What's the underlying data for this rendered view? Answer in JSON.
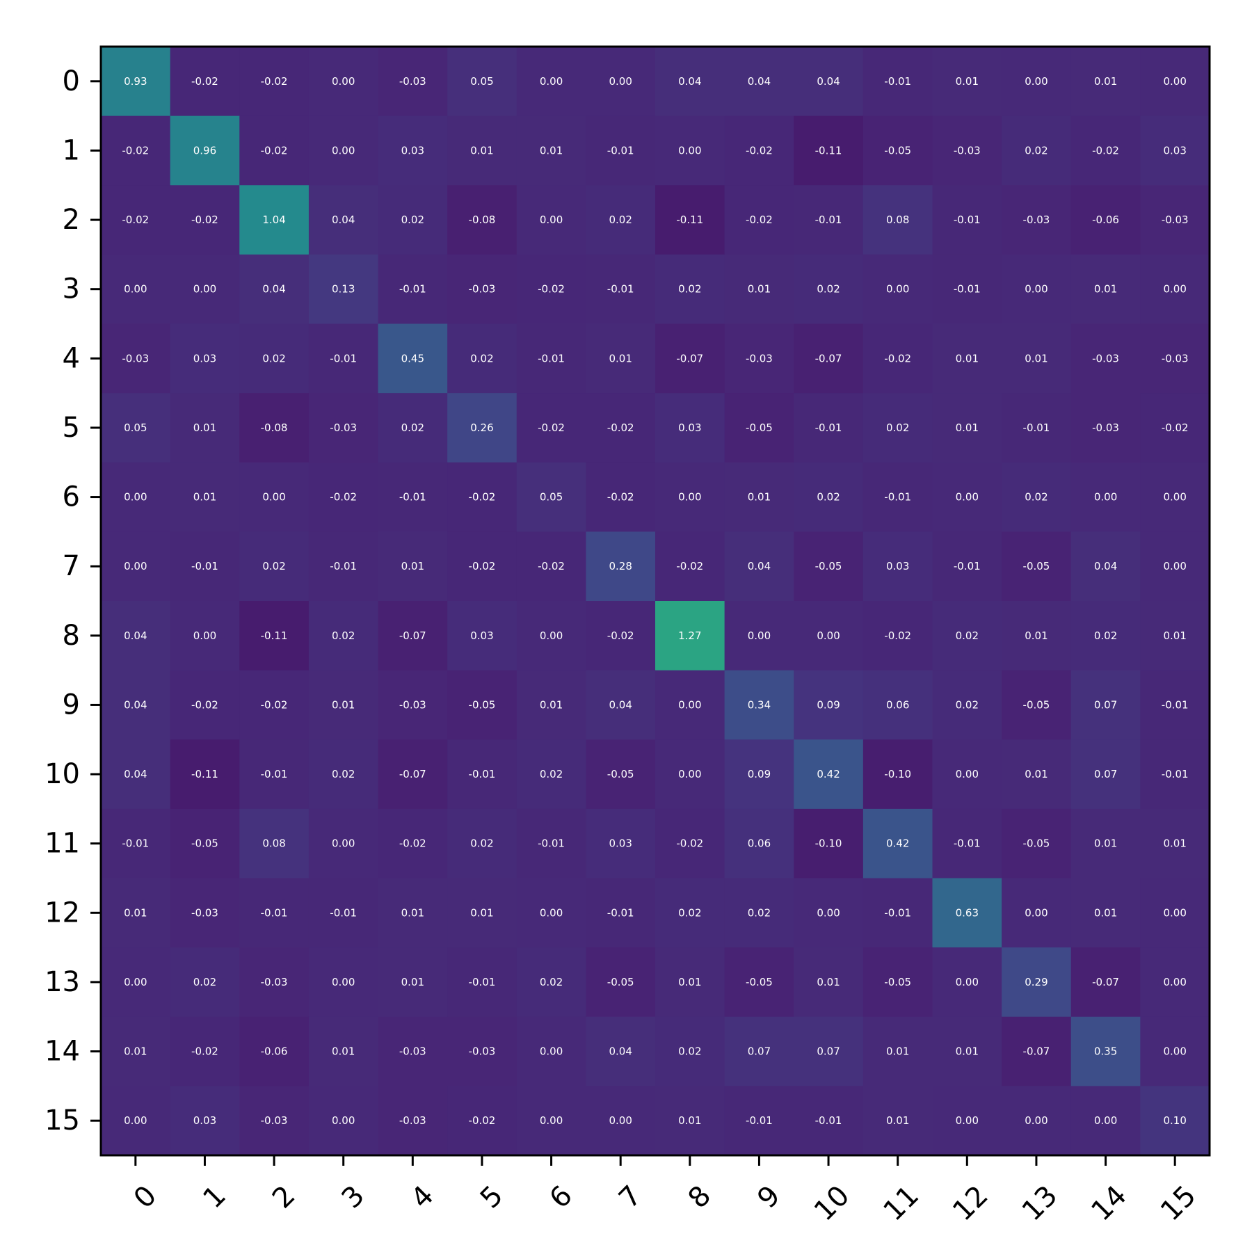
{
  "chart_data": {
    "type": "heatmap",
    "title": "",
    "xlabel": "",
    "ylabel": "",
    "x_categories": [
      "0",
      "1",
      "2",
      "3",
      "4",
      "5",
      "6",
      "7",
      "8",
      "9",
      "10",
      "11",
      "12",
      "13",
      "14",
      "15"
    ],
    "y_categories": [
      "0",
      "1",
      "2",
      "3",
      "4",
      "5",
      "6",
      "7",
      "8",
      "9",
      "10",
      "11",
      "12",
      "13",
      "14",
      "15"
    ],
    "colormap": "viridis",
    "color_range": [
      -0.35,
      2.0
    ],
    "values": [
      [
        0.93,
        -0.02,
        -0.02,
        -0.0,
        -0.03,
        0.05,
        -0.0,
        0.0,
        0.04,
        0.04,
        0.04,
        -0.01,
        0.01,
        0.0,
        0.01,
        0.0
      ],
      [
        -0.02,
        0.96,
        -0.02,
        0.0,
        0.03,
        0.01,
        0.01,
        -0.01,
        -0.0,
        -0.02,
        -0.11,
        -0.05,
        -0.03,
        0.02,
        -0.02,
        0.03
      ],
      [
        -0.02,
        -0.02,
        1.04,
        0.04,
        0.02,
        -0.08,
        0.0,
        0.02,
        -0.11,
        -0.02,
        -0.01,
        0.08,
        -0.01,
        -0.03,
        -0.06,
        -0.03
      ],
      [
        -0.0,
        0.0,
        0.04,
        0.13,
        -0.01,
        -0.03,
        -0.02,
        -0.01,
        0.02,
        0.01,
        0.02,
        0.0,
        -0.01,
        0.0,
        0.01,
        0.0
      ],
      [
        -0.03,
        0.03,
        0.02,
        -0.01,
        0.45,
        0.02,
        -0.01,
        0.01,
        -0.07,
        -0.03,
        -0.07,
        -0.02,
        0.01,
        0.01,
        -0.03,
        -0.03
      ],
      [
        0.05,
        0.01,
        -0.08,
        -0.03,
        0.02,
        0.26,
        -0.02,
        -0.02,
        0.03,
        -0.05,
        -0.01,
        0.02,
        0.01,
        -0.01,
        -0.03,
        -0.02
      ],
      [
        -0.0,
        0.01,
        0.0,
        -0.02,
        -0.01,
        -0.02,
        0.05,
        -0.02,
        -0.0,
        0.01,
        0.02,
        -0.01,
        -0.0,
        0.02,
        -0.0,
        -0.0
      ],
      [
        0.0,
        -0.01,
        0.02,
        -0.01,
        0.01,
        -0.02,
        -0.02,
        0.28,
        -0.02,
        0.04,
        -0.05,
        0.03,
        -0.01,
        -0.05,
        0.04,
        0.0
      ],
      [
        0.04,
        -0.0,
        -0.11,
        0.02,
        -0.07,
        0.03,
        -0.0,
        -0.02,
        1.27,
        -0.0,
        0.0,
        -0.02,
        0.02,
        0.01,
        0.02,
        0.01
      ],
      [
        0.04,
        -0.02,
        -0.02,
        0.01,
        -0.03,
        -0.05,
        0.01,
        0.04,
        -0.0,
        0.34,
        0.09,
        0.06,
        0.02,
        -0.05,
        0.07,
        -0.01
      ],
      [
        0.04,
        -0.11,
        -0.01,
        0.02,
        -0.07,
        -0.01,
        0.02,
        -0.05,
        0.0,
        0.09,
        0.42,
        -0.1,
        -0.0,
        0.01,
        0.07,
        -0.01
      ],
      [
        -0.01,
        -0.05,
        0.08,
        0.0,
        -0.02,
        0.02,
        -0.01,
        0.03,
        -0.02,
        0.06,
        -0.1,
        0.42,
        -0.01,
        -0.05,
        0.01,
        0.01
      ],
      [
        0.01,
        -0.03,
        -0.01,
        -0.01,
        0.01,
        0.01,
        -0.0,
        -0.01,
        0.02,
        0.02,
        -0.0,
        -0.01,
        0.63,
        -0.0,
        0.01,
        -0.0
      ],
      [
        0.0,
        0.02,
        -0.03,
        0.0,
        0.01,
        -0.01,
        0.02,
        -0.05,
        0.01,
        -0.05,
        0.01,
        -0.05,
        -0.0,
        0.29,
        -0.07,
        0.0
      ],
      [
        0.01,
        -0.02,
        -0.06,
        0.01,
        -0.03,
        -0.03,
        -0.0,
        0.04,
        0.02,
        0.07,
        0.07,
        0.01,
        0.01,
        -0.07,
        0.35,
        0.0
      ],
      [
        0.0,
        0.03,
        -0.03,
        0.0,
        -0.03,
        -0.02,
        -0.0,
        0.0,
        0.01,
        -0.01,
        -0.01,
        0.01,
        -0.0,
        0.0,
        0.0,
        0.1
      ]
    ],
    "value_format": "0.00",
    "label_color": "#ffffff",
    "grid": false,
    "legend": "none"
  }
}
